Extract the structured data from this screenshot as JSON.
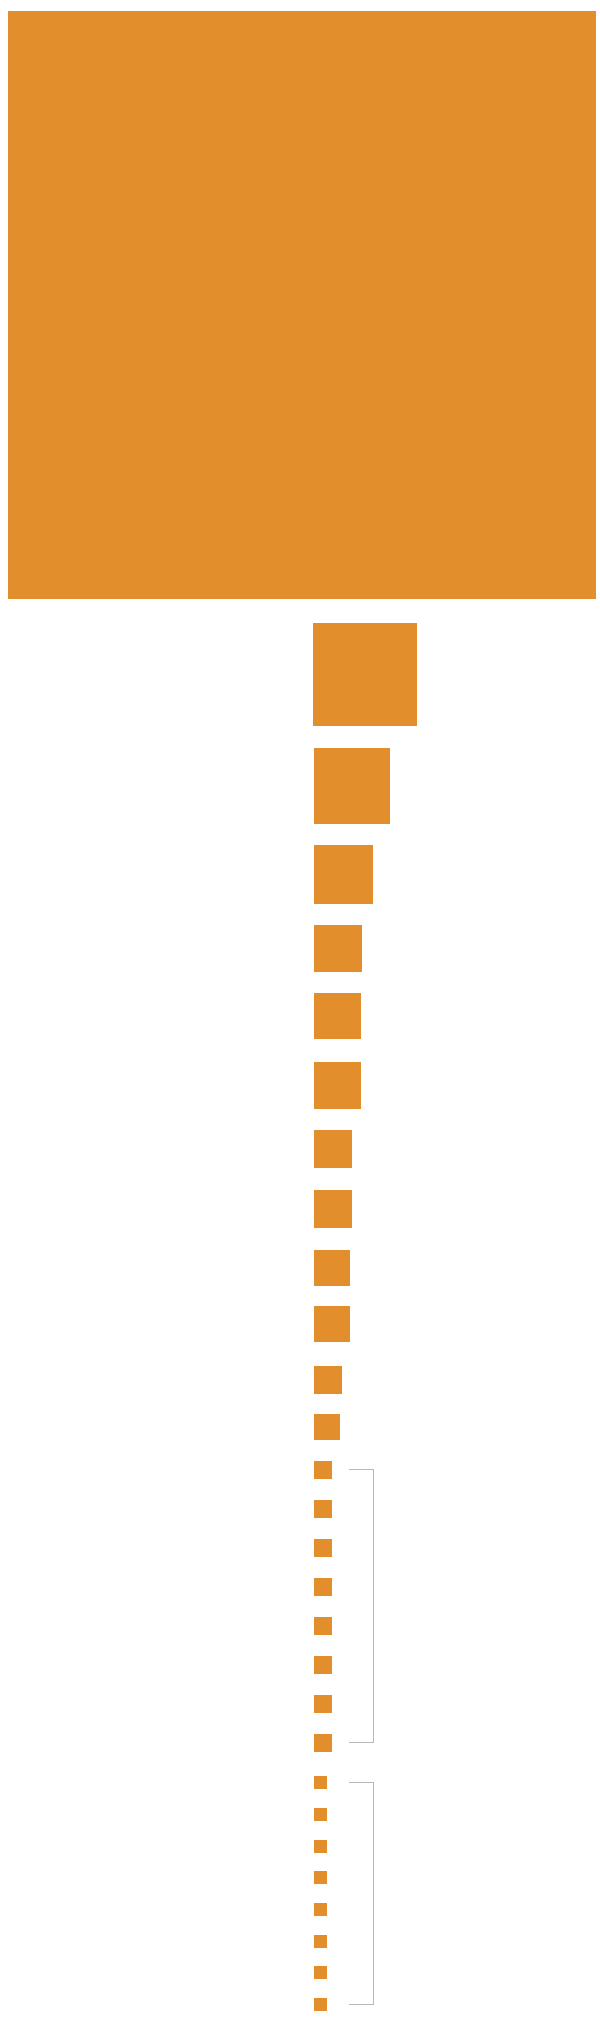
{
  "colors": {
    "square_fill": "#e28e2c",
    "bracket_stroke": "#b9b9b9",
    "background": "#ffffff"
  },
  "diagram": {
    "square_count": 28,
    "bracket_count": 2,
    "groups_bracketed": [
      {
        "first_square": 13,
        "last_square": 20
      },
      {
        "first_square": 21,
        "last_square": 28
      }
    ]
  }
}
